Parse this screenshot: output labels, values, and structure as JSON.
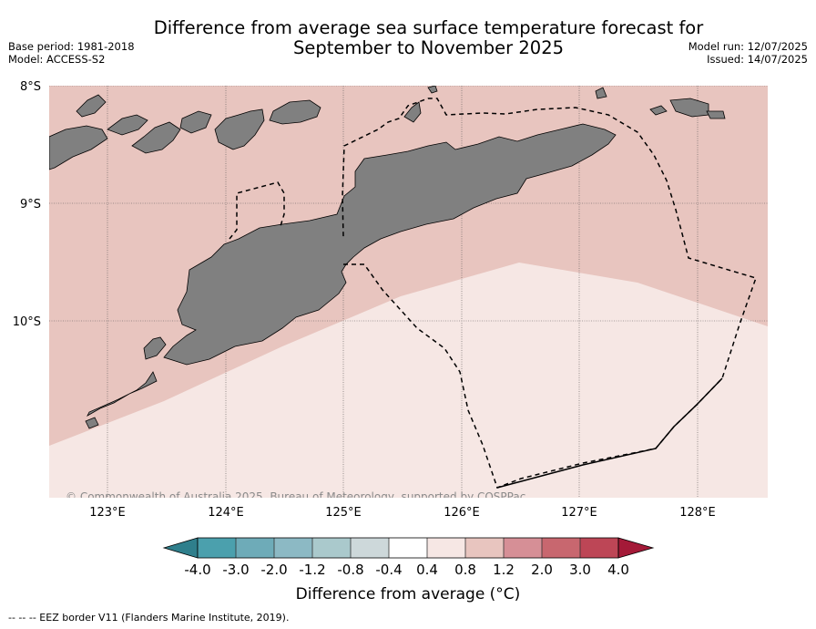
{
  "title_line1": "Difference from average sea surface temperature forecast for",
  "title_line2": "September to November 2025",
  "meta_left": {
    "base_period": "Base period: 1981-2018",
    "model": "Model: ACCESS-S2"
  },
  "meta_right": {
    "model_run": "Model run: 12/07/2025",
    "issued": "Issued: 14/07/2025"
  },
  "copyright": "© Commonwealth of Australia 2025, Bureau of Meteorology, supported by COSPPac",
  "lat_labels": [
    "8°S",
    "9°S",
    "10°S"
  ],
  "lon_labels": [
    "123°E",
    "124°E",
    "125°E",
    "126°E",
    "127°E",
    "128°E"
  ],
  "colorbar": {
    "title": "Difference from average (°C)",
    "ticks": [
      "-4.0",
      "-3.0",
      "-2.0",
      "-1.2",
      "-0.8",
      "-0.4",
      "0.4",
      "0.8",
      "1.2",
      "2.0",
      "3.0",
      "4.0"
    ],
    "colors": [
      "#4ba0ad",
      "#6eabb8",
      "#8cb9c4",
      "#aac9cc",
      "#cdd8da",
      "#ffffff",
      "#f6e7e4",
      "#e8c5bf",
      "#d68f96",
      "#c8676f",
      "#bd4656"
    ],
    "under_color": "#2f7f8c",
    "over_color": "#a41a38"
  },
  "regions": {
    "upper_fill": "#e8c5bf",
    "lower_fill": "#f6e7e4",
    "land_fill": "#808080"
  },
  "footnote": "-- -- -- EEZ border V11 (Flanders Marine Institute, 2019)."
}
